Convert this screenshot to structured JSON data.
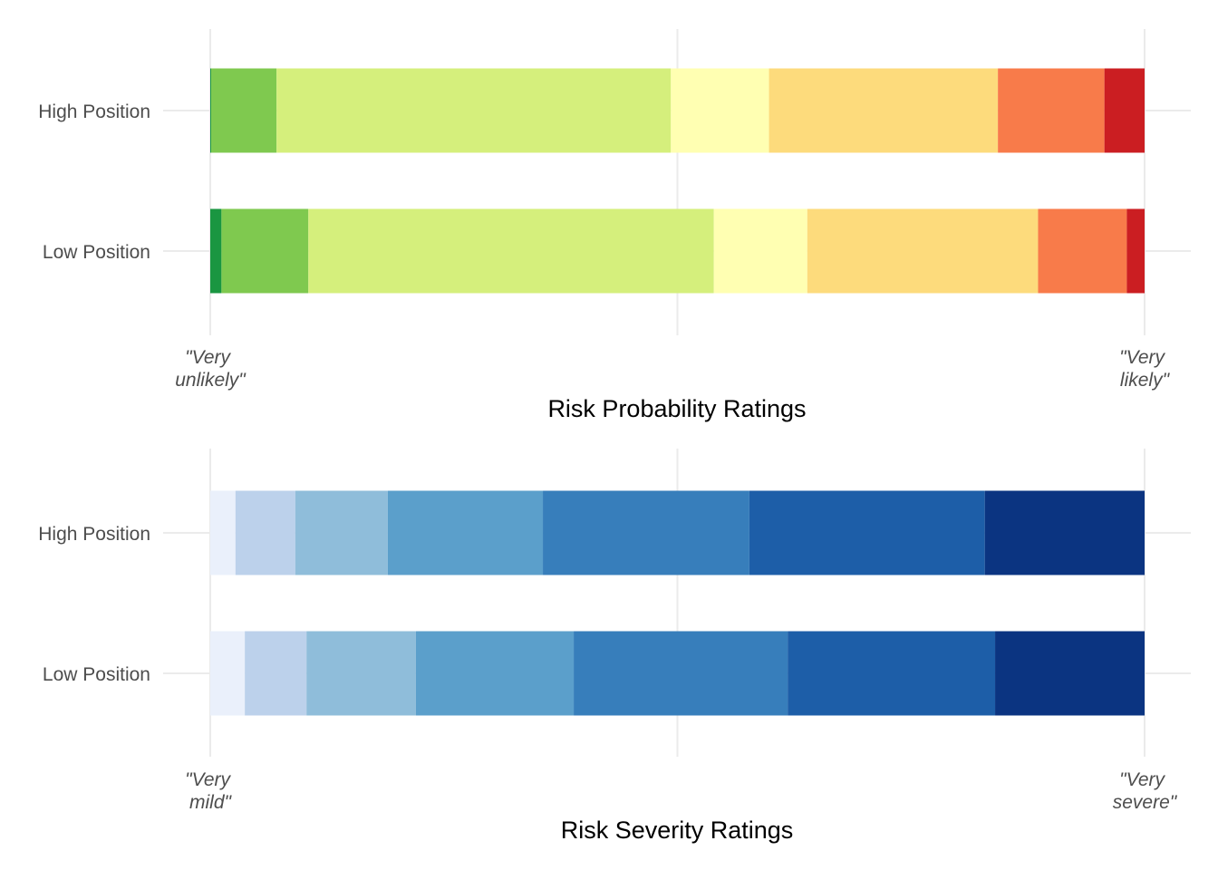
{
  "chart_data": [
    {
      "type": "bar",
      "orientation": "horizontal",
      "stacked": true,
      "normalized": true,
      "xlim": [
        0,
        1
      ],
      "xlabel": "Risk Probability Ratings",
      "ylabel": "",
      "grid": true,
      "legend": "none",
      "categories": [
        "High Position",
        "Low Position"
      ],
      "end_labels": [
        "\"Very unlikely\"",
        "\"Very likely\""
      ],
      "end_label_lines": [
        [
          "\"Very",
          "unlikely\""
        ],
        [
          "\"Very",
          "likely\""
        ]
      ],
      "segment_colors": [
        "#1a9641",
        "#7fc94f",
        "#d5ef7c",
        "#ffffb2",
        "#fddb7c",
        "#f87b4a",
        "#cb1e22"
      ],
      "rows": [
        {
          "category": "High Position",
          "shares": [
            0.001,
            0.07,
            0.422,
            0.105,
            0.245,
            0.114,
            0.043
          ]
        },
        {
          "category": "Low Position",
          "shares": [
            0.012,
            0.093,
            0.434,
            0.1,
            0.247,
            0.095,
            0.019
          ]
        }
      ]
    },
    {
      "type": "bar",
      "orientation": "horizontal",
      "stacked": true,
      "normalized": true,
      "xlim": [
        0,
        1
      ],
      "xlabel": "Risk Severity Ratings",
      "ylabel": "",
      "grid": true,
      "legend": "none",
      "categories": [
        "High Position",
        "Low Position"
      ],
      "end_labels": [
        "\"Very mild\"",
        "\"Very severe\""
      ],
      "end_label_lines": [
        [
          "\"Very",
          "mild\""
        ],
        [
          "\"Very",
          "severe\""
        ]
      ],
      "segment_colors": [
        "#eaf0fb",
        "#bcd1eb",
        "#8fbdda",
        "#5b9fcb",
        "#377ebb",
        "#1d5ea8",
        "#0b3481"
      ],
      "rows": [
        {
          "category": "High Position",
          "shares": [
            0.027,
            0.064,
            0.099,
            0.166,
            0.221,
            0.252,
            0.171
          ]
        },
        {
          "category": "Low Position",
          "shares": [
            0.037,
            0.066,
            0.117,
            0.169,
            0.229,
            0.222,
            0.16
          ]
        }
      ]
    }
  ]
}
